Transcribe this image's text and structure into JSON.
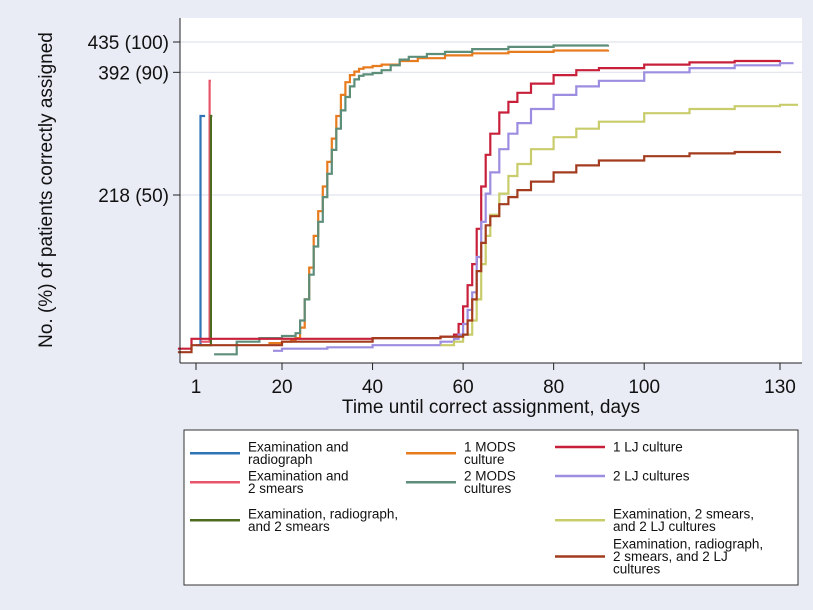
{
  "chart_data": {
    "type": "line",
    "title": "",
    "xlabel": "Time until correct assignment, days",
    "ylabel": "No. (%) of patients correctly assigned",
    "x_ticks": [
      {
        "value": 1,
        "label": "1"
      },
      {
        "value": 20,
        "label": "20"
      },
      {
        "value": 40,
        "label": "40"
      },
      {
        "value": 60,
        "label": "60"
      },
      {
        "value": 80,
        "label": "80"
      },
      {
        "value": 100,
        "label": "100"
      },
      {
        "value": 130,
        "label": "130"
      }
    ],
    "y_ticks": [
      {
        "value": 218,
        "label": "218 (50)"
      },
      {
        "value": 392,
        "label": "392 (90)"
      },
      {
        "value": 435,
        "label": "435 (100)"
      }
    ],
    "xlim": [
      -3,
      136
    ],
    "ylim": [
      0,
      460
    ],
    "grid": "horizontal",
    "legend_position": "bottom",
    "series": [
      {
        "name": "Examination and radiograph",
        "color": "#2f74b5",
        "x": [
          1,
          2,
          2,
          3
        ],
        "y": [
          5,
          5,
          330,
          330
        ]
      },
      {
        "name": "Examination and 2 smears",
        "color": "#e8546a",
        "x": [
          2,
          4,
          4,
          4.3
        ],
        "y": [
          10,
          10,
          380,
          380
        ]
      },
      {
        "name": "Examination, radiograph, and 2 smears",
        "color": "#4d6b1f",
        "x": [
          2,
          4.3,
          4.3,
          4.6
        ],
        "y": [
          5,
          5,
          330,
          330
        ]
      },
      {
        "name": "1 MODS culture",
        "color": "#e87b1e",
        "x": [
          17,
          20,
          22,
          23,
          24,
          25,
          26,
          27,
          28,
          29,
          30,
          31,
          32,
          33,
          34,
          35,
          36,
          37,
          38,
          40,
          42,
          46,
          50,
          56,
          62,
          70,
          80,
          92
        ],
        "y": [
          8,
          10,
          12,
          15,
          30,
          70,
          115,
          160,
          195,
          230,
          265,
          298,
          330,
          360,
          378,
          388,
          393,
          397,
          399,
          401,
          403,
          408,
          412,
          416,
          419,
          421,
          423,
          424
        ]
      },
      {
        "name": "2 MODS cultures",
        "color": "#5d8e7a",
        "x": [
          5,
          10,
          15,
          20,
          23,
          24,
          25,
          26,
          27,
          28,
          29,
          30,
          31,
          32,
          33,
          34,
          35,
          36,
          37,
          38,
          40,
          42,
          44,
          46,
          48,
          52,
          56,
          62,
          70,
          80,
          92
        ],
        "y": [
          -8,
          10,
          15,
          18,
          22,
          40,
          70,
          105,
          145,
          180,
          215,
          248,
          282,
          312,
          338,
          357,
          372,
          382,
          387,
          389,
          391,
          395,
          402,
          410,
          414,
          418,
          421,
          425,
          428,
          430,
          431
        ]
      },
      {
        "name": "1 LJ culture",
        "color": "#c8203b",
        "x": [
          -3,
          0,
          20,
          40,
          55,
          58,
          59,
          60,
          61,
          62,
          63,
          64,
          65,
          66,
          68,
          70,
          72,
          75,
          80,
          85,
          90,
          100,
          110,
          120,
          130
        ],
        "y": [
          0,
          14,
          14,
          15,
          17,
          20,
          35,
          60,
          90,
          120,
          170,
          230,
          275,
          305,
          335,
          350,
          363,
          376,
          388,
          395,
          398,
          403,
          406,
          408,
          409
        ]
      },
      {
        "name": "2 LJ cultures",
        "color": "#9c8de0",
        "x": [
          18,
          20,
          30,
          40,
          55,
          58,
          59,
          60,
          61,
          62,
          63,
          64,
          65,
          66,
          68,
          70,
          72,
          75,
          80,
          85,
          90,
          100,
          110,
          120,
          130,
          133
        ],
        "y": [
          -3,
          0,
          2,
          5,
          10,
          14,
          20,
          35,
          55,
          80,
          130,
          180,
          220,
          250,
          283,
          305,
          320,
          340,
          360,
          372,
          380,
          392,
          398,
          402,
          405,
          405
        ]
      },
      {
        "name": "Examination, 2 smears, and 2 LJ cultures",
        "color": "#c9cc6b",
        "x": [
          55,
          58,
          60,
          62,
          63,
          64,
          65,
          66,
          68,
          70,
          72,
          75,
          80,
          85,
          90,
          100,
          110,
          120,
          130,
          134
        ],
        "y": [
          5,
          10,
          20,
          40,
          70,
          120,
          160,
          190,
          220,
          245,
          262,
          283,
          300,
          312,
          322,
          334,
          340,
          344,
          346,
          346
        ]
      },
      {
        "name": "Examination, radiograph, 2 smears, and 2 LJ cultures",
        "color": "#a33c1f",
        "x": [
          -3,
          0,
          20,
          40,
          55,
          60,
          61,
          62,
          63,
          64,
          65,
          66,
          68,
          70,
          72,
          75,
          80,
          85,
          90,
          100,
          110,
          120,
          130
        ],
        "y": [
          -5,
          5,
          10,
          15,
          17,
          20,
          40,
          70,
          110,
          150,
          175,
          188,
          205,
          215,
          225,
          237,
          250,
          260,
          267,
          273,
          277,
          279,
          280
        ]
      }
    ]
  },
  "legend": {
    "items": [
      {
        "col": 0,
        "row": 0,
        "color": "#2f74b5",
        "lines": [
          "Examination and",
          "radiograph"
        ]
      },
      {
        "col": 0,
        "row": 1,
        "color": "#e8546a",
        "lines": [
          "Examination and",
          "2 smears"
        ]
      },
      {
        "col": 0,
        "row": 2,
        "color": "#4d6b1f",
        "lines": [
          "Examination, radiograph,",
          "and 2 smears"
        ]
      },
      {
        "col": 1,
        "row": 0,
        "color": "#e87b1e",
        "lines": [
          "1 MODS",
          "culture"
        ]
      },
      {
        "col": 1,
        "row": 1,
        "color": "#5d8e7a",
        "lines": [
          "2 MODS",
          "cultures"
        ]
      },
      {
        "col": 2,
        "row": 0,
        "color": "#c8203b",
        "lines": [
          "1 LJ culture"
        ]
      },
      {
        "col": 2,
        "row": 1,
        "color": "#9c8de0",
        "lines": [
          "2 LJ cultures"
        ]
      },
      {
        "col": 2,
        "row": 2,
        "color": "#c9cc6b",
        "lines": [
          "Examination, 2 smears,",
          "and 2 LJ cultures"
        ]
      },
      {
        "col": 2,
        "row": 3,
        "color": "#a33c1f",
        "lines": [
          "Examination, radiograph,",
          "2 smears, and 2 LJ",
          "cultures"
        ]
      }
    ]
  }
}
